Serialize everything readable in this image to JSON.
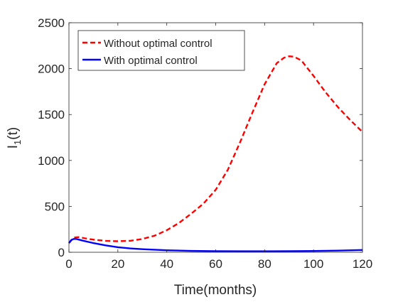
{
  "chart_data": {
    "type": "line",
    "title": "",
    "xlabel": "Time(months)",
    "ylabel": "I",
    "ylabel_subscript": "1",
    "ylabel_suffix": "(t)",
    "xlim": [
      0,
      120
    ],
    "ylim": [
      0,
      2500
    ],
    "xticks": [
      0,
      20,
      40,
      60,
      80,
      100,
      120
    ],
    "yticks": [
      0,
      500,
      1000,
      1500,
      2000,
      2500
    ],
    "grid": false,
    "legend_position": "top-left",
    "series": [
      {
        "name": "Without optimal control",
        "color": "#ff0000",
        "dash": "dashed",
        "x": [
          0,
          2,
          4,
          6,
          8,
          10,
          15,
          20,
          25,
          30,
          35,
          40,
          45,
          50,
          55,
          60,
          65,
          70,
          75,
          80,
          85,
          88,
          90,
          92,
          95,
          100,
          105,
          110,
          115,
          120
        ],
        "y": [
          100,
          160,
          165,
          155,
          145,
          138,
          125,
          120,
          125,
          145,
          180,
          240,
          320,
          420,
          530,
          680,
          900,
          1200,
          1520,
          1830,
          2060,
          2120,
          2135,
          2130,
          2090,
          1920,
          1740,
          1580,
          1440,
          1310
        ]
      },
      {
        "name": "With optimal control",
        "color": "#0000ff",
        "dash": "solid",
        "x": [
          0,
          1,
          2,
          3,
          4,
          6,
          8,
          10,
          15,
          20,
          25,
          30,
          40,
          50,
          60,
          70,
          80,
          90,
          100,
          110,
          120
        ],
        "y": [
          100,
          135,
          145,
          145,
          138,
          125,
          112,
          100,
          75,
          55,
          42,
          33,
          22,
          15,
          12,
          11,
          11,
          12,
          14,
          18,
          25
        ]
      }
    ]
  }
}
